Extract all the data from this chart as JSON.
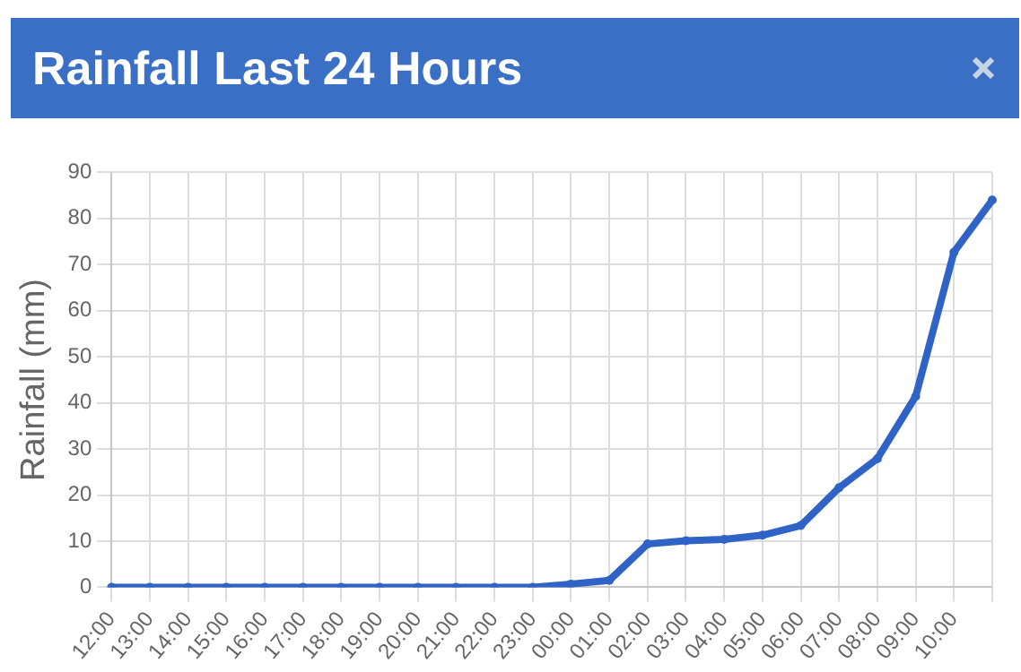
{
  "chart_data": {
    "type": "line",
    "title": "Rainfall Last 24 Hours",
    "ylabel": "Rainfall (mm)",
    "categories": [
      "12:00",
      "13:00",
      "14:00",
      "15:00",
      "16:00",
      "17:00",
      "18:00",
      "19:00",
      "20:00",
      "21:00",
      "22:00",
      "23:00",
      "00:00",
      "01:00",
      "02:00",
      "03:00",
      "04:00",
      "05:00",
      "06:00",
      "07:00",
      "08:00",
      "09:00",
      "10:00",
      null
    ],
    "series": [
      {
        "color": "#2f63c6",
        "values": [
          0,
          0,
          0,
          0,
          0,
          0,
          0,
          0,
          0,
          0,
          0,
          0,
          0.7,
          1.5,
          9.4,
          10.1,
          10.4,
          11.3,
          13.4,
          21.6,
          27.9,
          41.4,
          72.7,
          84
        ]
      }
    ],
    "ylim": [
      0,
      90
    ],
    "yticks": [
      0,
      10,
      20,
      30,
      40,
      50,
      60,
      70,
      80,
      90
    ],
    "grid": true,
    "legend": false,
    "marker": "circle",
    "line_style": "solid"
  }
}
